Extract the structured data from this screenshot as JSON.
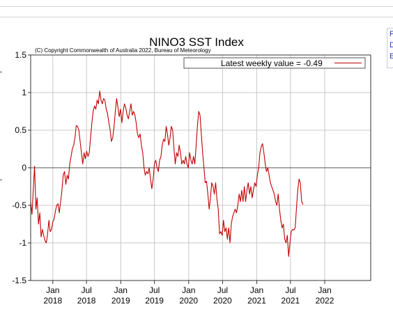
{
  "side_links": [
    "F",
    "D",
    "E"
  ],
  "chart_data": {
    "type": "line",
    "title": "NINO3 SST Index",
    "subtitle": "(C) Copyright Commonwealth of Australia 2022, Bureau of Meteorology",
    "legend": {
      "label": "Latest weekly value = -0.49",
      "position": "top-right"
    },
    "xlabel": "",
    "ylabel": "",
    "x_range": [
      "2017-09-04",
      "2022-09-05"
    ],
    "ylim": [
      -1.5,
      1.5
    ],
    "y_ticks": [
      -1.5,
      -1,
      -0.5,
      0,
      0.5,
      1,
      1.5
    ],
    "y_tick_labels": [
      "-1.5",
      "-1",
      "-0.5",
      "0",
      "0.5",
      "1",
      "1.5"
    ],
    "x_ticks": [
      {
        "date": "2018-01-01",
        "month": "Jan",
        "year": "2018"
      },
      {
        "date": "2018-07-01",
        "month": "Jul",
        "year": "2018"
      },
      {
        "date": "2019-01-01",
        "month": "Jan",
        "year": "2019"
      },
      {
        "date": "2019-07-01",
        "month": "Jul",
        "year": "2019"
      },
      {
        "date": "2020-01-01",
        "month": "Jan",
        "year": "2020"
      },
      {
        "date": "2020-07-01",
        "month": "Jul",
        "year": "2020"
      },
      {
        "date": "2021-01-01",
        "month": "Jan",
        "year": "2021"
      },
      {
        "date": "2021-07-01",
        "month": "Jul",
        "year": "2021"
      },
      {
        "date": "2022-01-01",
        "month": "Jan",
        "year": "2022"
      }
    ],
    "grid": true,
    "zero_line": true,
    "series": [
      {
        "color": "#c00000",
        "points": [
          [
            "2017-09-04",
            -0.45
          ],
          [
            "2017-09-11",
            -0.62
          ],
          [
            "2017-09-18",
            -0.3
          ],
          [
            "2017-09-25",
            0.02
          ],
          [
            "2017-10-02",
            -0.55
          ],
          [
            "2017-10-09",
            -0.4
          ],
          [
            "2017-10-16",
            -0.75
          ],
          [
            "2017-10-23",
            -0.6
          ],
          [
            "2017-10-30",
            -0.92
          ],
          [
            "2017-11-06",
            -0.82
          ],
          [
            "2017-11-13",
            -0.9
          ],
          [
            "2017-11-20",
            -0.97
          ],
          [
            "2017-11-27",
            -1.0
          ],
          [
            "2017-12-04",
            -0.88
          ],
          [
            "2017-12-11",
            -0.7
          ],
          [
            "2017-12-18",
            -0.85
          ],
          [
            "2017-12-25",
            -0.82
          ],
          [
            "2018-01-01",
            -0.72
          ],
          [
            "2018-01-08",
            -0.68
          ],
          [
            "2018-01-15",
            -0.58
          ],
          [
            "2018-01-22",
            -0.5
          ],
          [
            "2018-01-29",
            -0.48
          ],
          [
            "2018-02-05",
            -0.6
          ],
          [
            "2018-02-12",
            -0.45
          ],
          [
            "2018-02-19",
            -0.3
          ],
          [
            "2018-02-26",
            -0.1
          ],
          [
            "2018-03-05",
            -0.05
          ],
          [
            "2018-03-12",
            -0.22
          ],
          [
            "2018-03-19",
            -0.1
          ],
          [
            "2018-03-26",
            -0.15
          ],
          [
            "2018-04-02",
            0.05
          ],
          [
            "2018-04-09",
            0.15
          ],
          [
            "2018-04-16",
            0.25
          ],
          [
            "2018-04-23",
            0.3
          ],
          [
            "2018-04-30",
            0.4
          ],
          [
            "2018-05-07",
            0.56
          ],
          [
            "2018-05-14",
            0.55
          ],
          [
            "2018-05-21",
            0.5
          ],
          [
            "2018-05-28",
            0.35
          ],
          [
            "2018-06-04",
            0.2
          ],
          [
            "2018-06-11",
            0.05
          ],
          [
            "2018-06-18",
            0.2
          ],
          [
            "2018-06-25",
            0.12
          ],
          [
            "2018-07-02",
            0.22
          ],
          [
            "2018-07-09",
            0.15
          ],
          [
            "2018-07-16",
            0.2
          ],
          [
            "2018-07-23",
            0.4
          ],
          [
            "2018-07-30",
            0.6
          ],
          [
            "2018-08-06",
            0.75
          ],
          [
            "2018-08-13",
            0.82
          ],
          [
            "2018-08-20",
            0.78
          ],
          [
            "2018-08-27",
            0.9
          ],
          [
            "2018-09-03",
            0.85
          ],
          [
            "2018-09-10",
            1.02
          ],
          [
            "2018-09-17",
            0.9
          ],
          [
            "2018-09-24",
            0.85
          ],
          [
            "2018-10-01",
            0.92
          ],
          [
            "2018-10-08",
            0.9
          ],
          [
            "2018-10-15",
            0.78
          ],
          [
            "2018-10-22",
            0.72
          ],
          [
            "2018-10-29",
            0.6
          ],
          [
            "2018-11-05",
            0.5
          ],
          [
            "2018-11-12",
            0.35
          ],
          [
            "2018-11-19",
            0.4
          ],
          [
            "2018-11-26",
            0.55
          ],
          [
            "2018-12-03",
            0.75
          ],
          [
            "2018-12-10",
            0.92
          ],
          [
            "2018-12-17",
            0.8
          ],
          [
            "2018-12-24",
            0.68
          ],
          [
            "2018-12-31",
            0.78
          ],
          [
            "2019-01-07",
            0.6
          ],
          [
            "2019-01-14",
            0.75
          ],
          [
            "2019-01-21",
            0.85
          ],
          [
            "2019-01-28",
            0.8
          ],
          [
            "2019-02-04",
            0.7
          ],
          [
            "2019-02-11",
            0.65
          ],
          [
            "2019-02-18",
            0.75
          ],
          [
            "2019-02-25",
            0.85
          ],
          [
            "2019-03-04",
            0.7
          ],
          [
            "2019-03-11",
            0.75
          ],
          [
            "2019-03-18",
            0.7
          ],
          [
            "2019-03-25",
            0.6
          ],
          [
            "2019-04-01",
            0.45
          ],
          [
            "2019-04-08",
            0.4
          ],
          [
            "2019-04-15",
            0.45
          ],
          [
            "2019-04-22",
            0.3
          ],
          [
            "2019-04-29",
            0.2
          ],
          [
            "2019-05-06",
            0.0
          ],
          [
            "2019-05-13",
            -0.1
          ],
          [
            "2019-05-20",
            -0.05
          ],
          [
            "2019-05-27",
            -0.08
          ],
          [
            "2019-06-03",
            0.0
          ],
          [
            "2019-06-10",
            -0.15
          ],
          [
            "2019-06-17",
            -0.28
          ],
          [
            "2019-06-24",
            -0.15
          ],
          [
            "2019-07-01",
            0.05
          ],
          [
            "2019-07-08",
            0.1
          ],
          [
            "2019-07-15",
            0.0
          ],
          [
            "2019-07-22",
            -0.05
          ],
          [
            "2019-07-29",
            0.1
          ],
          [
            "2019-08-05",
            0.15
          ],
          [
            "2019-08-12",
            0.3
          ],
          [
            "2019-08-19",
            0.38
          ],
          [
            "2019-08-26",
            0.35
          ],
          [
            "2019-09-02",
            0.55
          ],
          [
            "2019-09-09",
            0.45
          ],
          [
            "2019-09-16",
            0.3
          ],
          [
            "2019-09-23",
            0.4
          ],
          [
            "2019-09-30",
            0.55
          ],
          [
            "2019-10-07",
            0.5
          ],
          [
            "2019-10-14",
            0.25
          ],
          [
            "2019-10-21",
            0.05
          ],
          [
            "2019-10-28",
            0.2
          ],
          [
            "2019-11-04",
            0.15
          ],
          [
            "2019-11-11",
            0.3
          ],
          [
            "2019-11-18",
            0.2
          ],
          [
            "2019-11-25",
            0.05
          ],
          [
            "2019-12-02",
            0.1
          ],
          [
            "2019-12-09",
            0.05
          ],
          [
            "2019-12-16",
            0.15
          ],
          [
            "2019-12-23",
            0.05
          ],
          [
            "2019-12-30",
            0.0
          ],
          [
            "2020-01-06",
            0.2
          ],
          [
            "2020-01-13",
            0.1
          ],
          [
            "2020-01-20",
            0.05
          ],
          [
            "2020-01-27",
            0.15
          ],
          [
            "2020-02-03",
            0.05
          ],
          [
            "2020-02-10",
            0.3
          ],
          [
            "2020-02-17",
            0.55
          ],
          [
            "2020-02-24",
            0.75
          ],
          [
            "2020-03-02",
            0.7
          ],
          [
            "2020-03-09",
            0.45
          ],
          [
            "2020-03-16",
            0.2
          ],
          [
            "2020-03-23",
            0.0
          ],
          [
            "2020-03-30",
            -0.2
          ],
          [
            "2020-04-06",
            -0.18
          ],
          [
            "2020-04-13",
            -0.35
          ],
          [
            "2020-04-20",
            -0.55
          ],
          [
            "2020-04-27",
            -0.4
          ],
          [
            "2020-05-04",
            -0.2
          ],
          [
            "2020-05-11",
            -0.25
          ],
          [
            "2020-05-18",
            -0.35
          ],
          [
            "2020-05-25",
            -0.2
          ],
          [
            "2020-06-01",
            -0.42
          ],
          [
            "2020-06-08",
            -0.55
          ],
          [
            "2020-06-15",
            -0.88
          ],
          [
            "2020-06-22",
            -0.85
          ],
          [
            "2020-06-29",
            -0.9
          ],
          [
            "2020-07-06",
            -0.7
          ],
          [
            "2020-07-13",
            -0.85
          ],
          [
            "2020-07-20",
            -0.8
          ],
          [
            "2020-07-27",
            -0.95
          ],
          [
            "2020-08-03",
            -0.8
          ],
          [
            "2020-08-10",
            -1.0
          ],
          [
            "2020-08-17",
            -0.75
          ],
          [
            "2020-08-24",
            -0.65
          ],
          [
            "2020-08-31",
            -0.6
          ],
          [
            "2020-09-07",
            -0.55
          ],
          [
            "2020-09-14",
            -0.6
          ],
          [
            "2020-09-21",
            -0.5
          ],
          [
            "2020-09-28",
            -0.35
          ],
          [
            "2020-10-05",
            -0.45
          ],
          [
            "2020-10-12",
            -0.3
          ],
          [
            "2020-10-19",
            -0.45
          ],
          [
            "2020-10-26",
            -0.25
          ],
          [
            "2020-11-02",
            -0.45
          ],
          [
            "2020-11-09",
            -0.3
          ],
          [
            "2020-11-16",
            -0.2
          ],
          [
            "2020-11-23",
            -0.35
          ],
          [
            "2020-11-30",
            -0.25
          ],
          [
            "2020-12-07",
            -0.4
          ],
          [
            "2020-12-14",
            -0.3
          ],
          [
            "2020-12-21",
            -0.2
          ],
          [
            "2020-12-28",
            -0.25
          ],
          [
            "2021-01-04",
            -0.1
          ],
          [
            "2021-01-11",
            0.0
          ],
          [
            "2021-01-18",
            0.2
          ],
          [
            "2021-01-25",
            0.28
          ],
          [
            "2021-02-01",
            0.32
          ],
          [
            "2021-02-08",
            0.2
          ],
          [
            "2021-02-15",
            0.05
          ],
          [
            "2021-02-22",
            -0.05
          ],
          [
            "2021-03-01",
            0.0
          ],
          [
            "2021-03-08",
            -0.1
          ],
          [
            "2021-03-15",
            -0.2
          ],
          [
            "2021-03-22",
            -0.25
          ],
          [
            "2021-03-29",
            -0.3
          ],
          [
            "2021-04-05",
            -0.35
          ],
          [
            "2021-04-12",
            -0.45
          ],
          [
            "2021-04-19",
            -0.5
          ],
          [
            "2021-04-26",
            -0.35
          ],
          [
            "2021-05-03",
            -0.55
          ],
          [
            "2021-05-10",
            -0.7
          ],
          [
            "2021-05-17",
            -0.8
          ],
          [
            "2021-05-24",
            -0.75
          ],
          [
            "2021-05-31",
            -0.95
          ],
          [
            "2021-06-07",
            -1.0
          ],
          [
            "2021-06-14",
            -0.9
          ],
          [
            "2021-06-21",
            -1.18
          ],
          [
            "2021-06-28",
            -1.0
          ],
          [
            "2021-07-05",
            -0.85
          ],
          [
            "2021-07-12",
            -0.82
          ],
          [
            "2021-07-19",
            -0.83
          ],
          [
            "2021-07-26",
            -0.8
          ],
          [
            "2021-08-02",
            -0.55
          ],
          [
            "2021-08-09",
            -0.3
          ],
          [
            "2021-08-16",
            -0.15
          ],
          [
            "2021-08-23",
            -0.2
          ],
          [
            "2021-08-30",
            -0.45
          ],
          [
            "2021-09-06",
            -0.49
          ]
        ]
      }
    ]
  }
}
